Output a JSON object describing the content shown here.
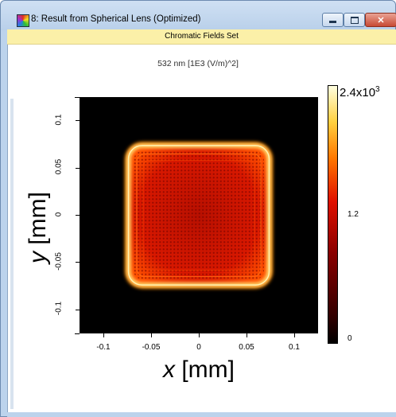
{
  "window": {
    "title": "8: Result from Spherical Lens (Optimized)",
    "minimize_label": "",
    "maximize_label": "",
    "close_label": "✕"
  },
  "subtitle_bar": {
    "text": "Chromatic Fields Set"
  },
  "plot": {
    "header": "532 nm  [1E3 (V/m)^2]",
    "xlabel_symbol": "x",
    "xlabel_unit": " [mm]",
    "ylabel_symbol": "y",
    "ylabel_unit": " [mm]",
    "colormap": "black-red-yellow-white",
    "colorbar": {
      "max": "2.4x10",
      "max_exp": "3",
      "mid": "1.2",
      "min": "0"
    }
  },
  "chart_data": {
    "type": "heatmap",
    "title": "532 nm  [1E3 (V/m)^2]",
    "xlabel": "x [mm]",
    "ylabel": "y [mm]",
    "xlim": [
      -0.125,
      0.125
    ],
    "ylim": [
      -0.125,
      0.125
    ],
    "x_ticks": [
      "-0.1",
      "-0.05",
      "0",
      "0.05",
      "0.1"
    ],
    "x_tick_values": [
      -0.1,
      -0.05,
      0,
      0.05,
      0.1
    ],
    "y_ticks": [
      "0.1",
      "0.05",
      "0",
      "-0.05",
      "-0.1"
    ],
    "y_tick_values": [
      0.1,
      0.05,
      0,
      -0.05,
      -0.1
    ],
    "colorbar_range": [
      0,
      2400
    ],
    "colorbar_ticks": [
      "0",
      "1.2",
      "2.4x10^3"
    ],
    "field_extent_mm": [
      -0.075,
      0.075
    ]
  }
}
